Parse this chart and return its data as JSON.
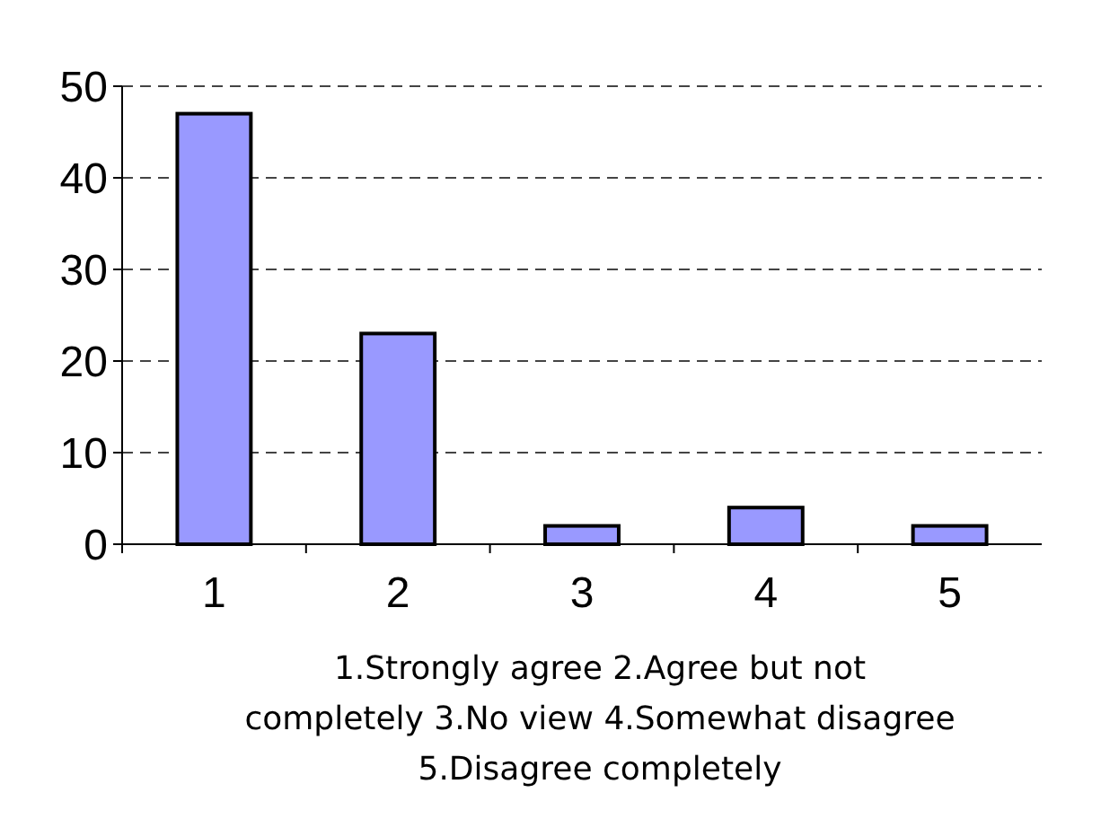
{
  "chart_data": {
    "type": "bar",
    "categories": [
      "1",
      "2",
      "3",
      "4",
      "5"
    ],
    "values": [
      47,
      23,
      2,
      4,
      2
    ],
    "color": "#9999ff",
    "ylim": [
      0,
      50
    ],
    "yticks": [
      0,
      10,
      20,
      30,
      40,
      50
    ],
    "grid": "y",
    "xlabel": "1.Strongly agree 2.Agree but not completely 3.No view 4.Somewhat disagree 5.Disagree completely"
  }
}
